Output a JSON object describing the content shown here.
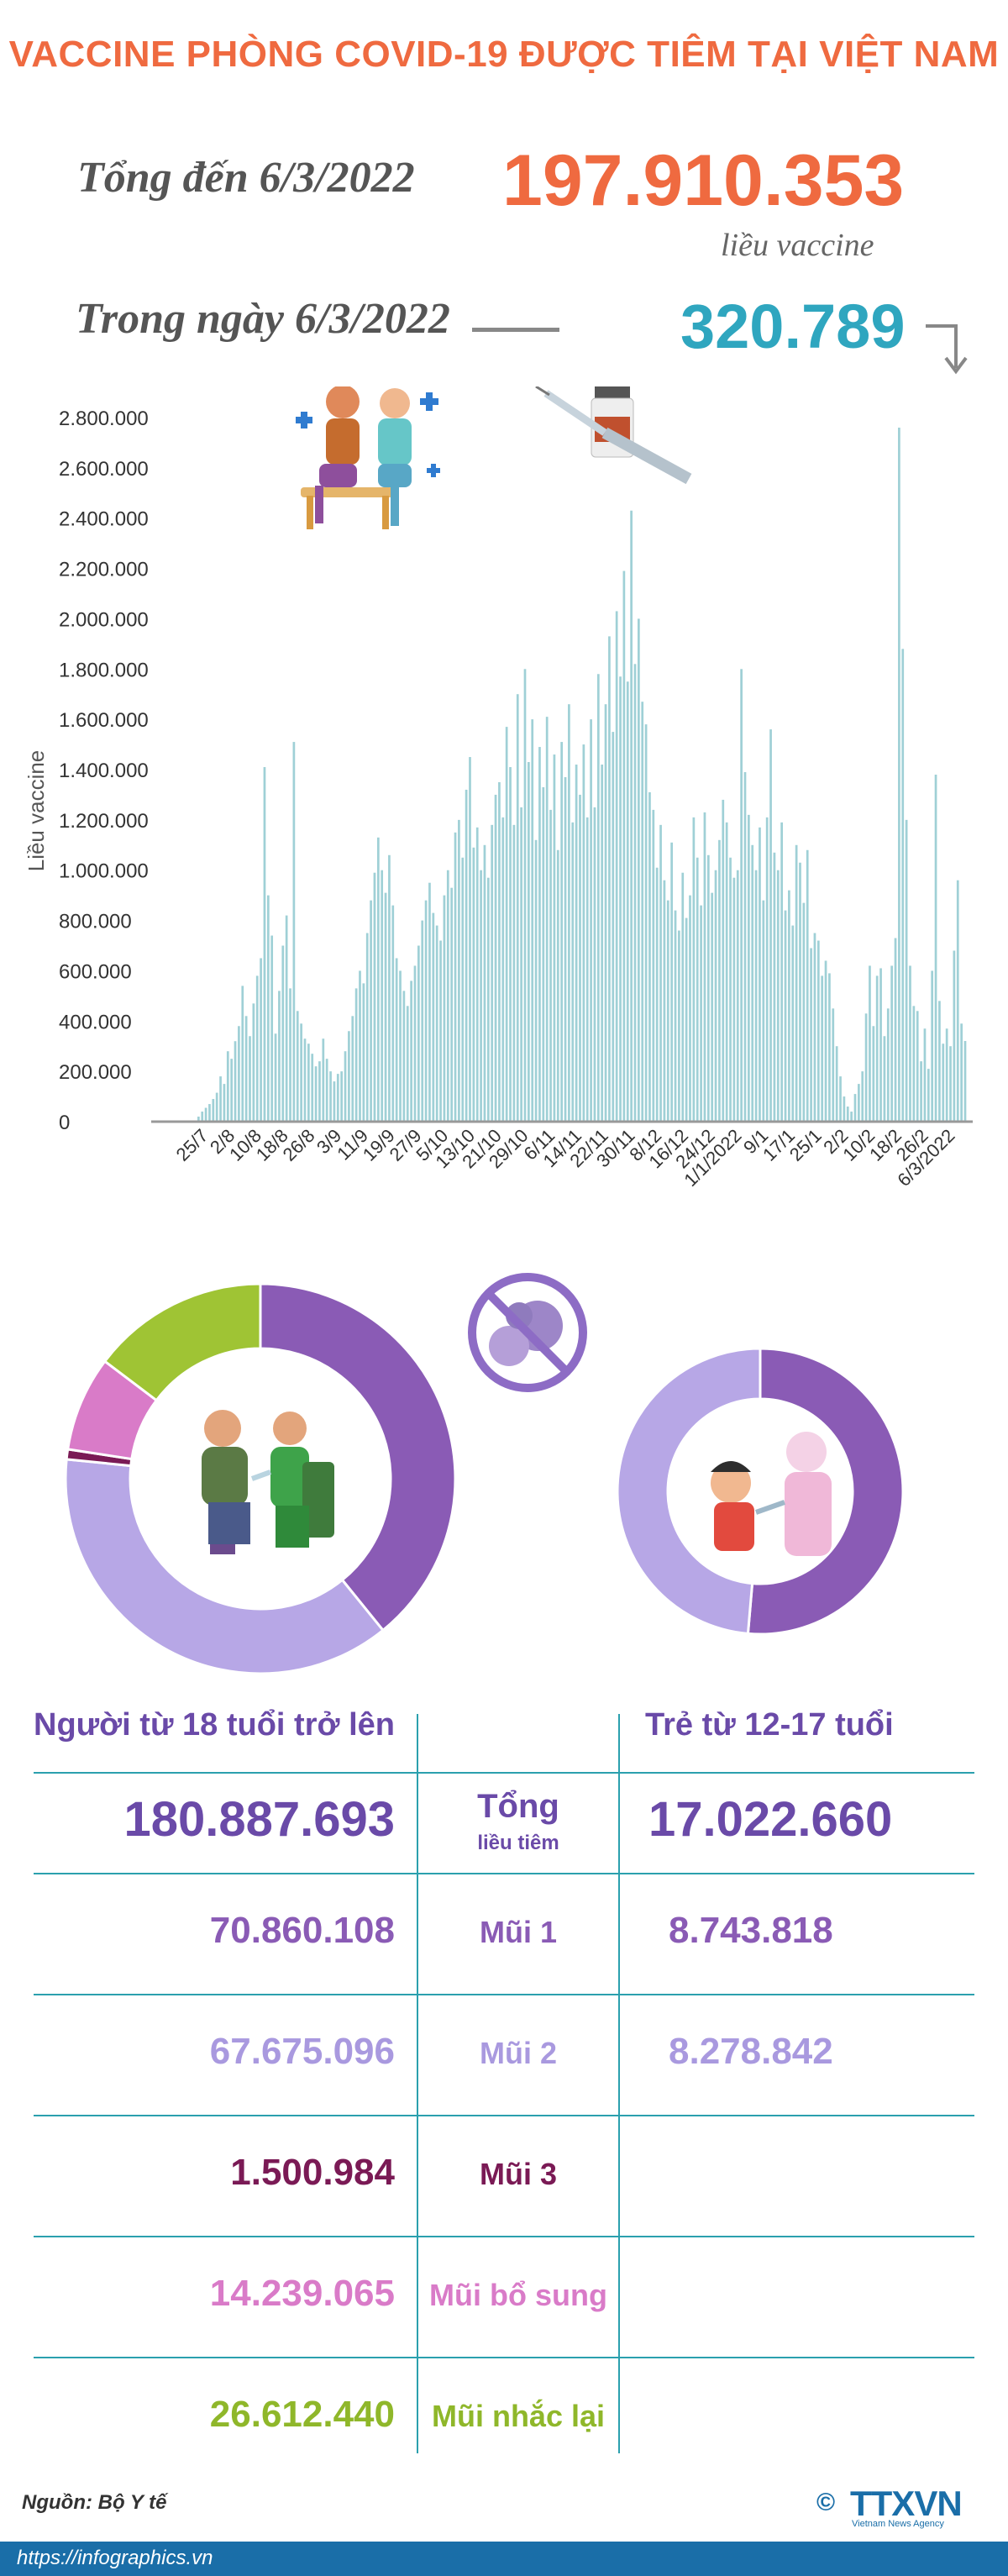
{
  "title": "VACCINE PHÒNG COVID-19 ĐƯỢC TIÊM TẠI VIỆT NAM",
  "summary": {
    "total_label": "Tổng đến 6/3/2022",
    "total_value": "197.910.353",
    "total_unit": "liều vaccine",
    "daily_label": "Trong ngày 6/3/2022",
    "daily_value": "320.789",
    "daily_trend_icon": "down-arrow-icon"
  },
  "chart_data": {
    "type": "bar",
    "ylabel": "Liều vaccine",
    "ylim": [
      0,
      2800000
    ],
    "yticks": [
      "0",
      "200.000",
      "400.000",
      "600.000",
      "800.000",
      "1.000.000",
      "1.200.000",
      "1.400.000",
      "1.600.000",
      "1.800.000",
      "2.000.000",
      "2.200.000",
      "2.400.000",
      "2.600.000",
      "2.800.000"
    ],
    "tick_labels": [
      "25/7",
      "2/8",
      "10/8",
      "18/8",
      "26/8",
      "3/9",
      "11/9",
      "19/9",
      "27/9",
      "5/10",
      "13/10",
      "21/10",
      "29/10",
      "6/11",
      "14/11",
      "22/11",
      "30/11",
      "8/12",
      "16/12",
      "24/12",
      "1/1/2022",
      "9/1",
      "17/1",
      "25/1",
      "2/2",
      "10/2",
      "18/2",
      "26/2",
      "6/3/2022"
    ],
    "bar_color": "#9fd0d6",
    "values": [
      20000,
      40000,
      55000,
      70000,
      90000,
      115000,
      180000,
      150000,
      280000,
      250000,
      320000,
      380000,
      540000,
      420000,
      340000,
      470000,
      580000,
      650000,
      1410000,
      900000,
      740000,
      350000,
      520000,
      700000,
      820000,
      530000,
      1510000,
      440000,
      390000,
      330000,
      310000,
      270000,
      220000,
      240000,
      330000,
      250000,
      200000,
      160000,
      190000,
      200000,
      280000,
      360000,
      420000,
      530000,
      600000,
      550000,
      750000,
      880000,
      990000,
      1130000,
      1000000,
      910000,
      1060000,
      860000,
      650000,
      600000,
      520000,
      460000,
      560000,
      620000,
      700000,
      800000,
      880000,
      950000,
      830000,
      780000,
      720000,
      900000,
      1000000,
      930000,
      1150000,
      1200000,
      1050000,
      1320000,
      1450000,
      1090000,
      1170000,
      1000000,
      1100000,
      970000,
      1180000,
      1300000,
      1350000,
      1210000,
      1570000,
      1410000,
      1180000,
      1700000,
      1250000,
      1800000,
      1430000,
      1600000,
      1120000,
      1490000,
      1330000,
      1610000,
      1240000,
      1460000,
      1080000,
      1510000,
      1370000,
      1660000,
      1190000,
      1420000,
      1300000,
      1500000,
      1210000,
      1600000,
      1250000,
      1780000,
      1420000,
      1660000,
      1930000,
      1550000,
      2030000,
      1770000,
      2190000,
      1750000,
      2430000,
      1820000,
      2000000,
      1670000,
      1580000,
      1310000,
      1240000,
      1010000,
      1180000,
      960000,
      880000,
      1110000,
      840000,
      760000,
      990000,
      810000,
      900000,
      1210000,
      1050000,
      860000,
      1230000,
      1060000,
      910000,
      1000000,
      1120000,
      1280000,
      1190000,
      1050000,
      970000,
      1000000,
      1800000,
      1390000,
      1220000,
      1100000,
      1000000,
      1170000,
      880000,
      1210000,
      1560000,
      1070000,
      1000000,
      1190000,
      840000,
      920000,
      780000,
      1100000,
      1030000,
      870000,
      1080000,
      690000,
      750000,
      720000,
      580000,
      640000,
      590000,
      450000,
      300000,
      180000,
      100000,
      60000,
      40000,
      110000,
      150000,
      200000,
      430000,
      620000,
      380000,
      580000,
      610000,
      340000,
      450000,
      620000,
      730000,
      2760000,
      1880000,
      1200000,
      620000,
      460000,
      440000,
      240000,
      370000,
      210000,
      600000,
      1380000,
      480000,
      310000,
      370000,
      300000,
      680000,
      960000,
      390000,
      320789
    ]
  },
  "donuts": {
    "adults": {
      "segments": [
        {
          "value": 70860108,
          "color": "#8a5bb5"
        },
        {
          "value": 67675096,
          "color": "#b7a7e6"
        },
        {
          "value": 1500984,
          "color": "#7a1a55"
        },
        {
          "value": 14239065,
          "color": "#d97bc8"
        },
        {
          "value": 26612440,
          "color": "#9fc434"
        }
      ]
    },
    "children": {
      "segments": [
        {
          "value": 8743818,
          "color": "#8a5bb5"
        },
        {
          "value": 8278842,
          "color": "#b7a7e6"
        }
      ]
    }
  },
  "table": {
    "adults_heading": "Người từ 18 tuổi trở lên",
    "children_heading": "Trẻ từ 12-17 tuổi",
    "total_label": "Tổng",
    "total_sublabel": "liều tiêm",
    "adults_total": "180.887.693",
    "children_total": "17.022.660",
    "rows": [
      {
        "label": "Mũi 1",
        "adults": "70.860.108",
        "children": "8.743.818",
        "color": "#8a5bb5"
      },
      {
        "label": "Mũi 2",
        "adults": "67.675.096",
        "children": "8.278.842",
        "color": "#a999df"
      },
      {
        "label": "Mũi 3",
        "adults": "1.500.984",
        "children": "",
        "color": "#7a1a55"
      },
      {
        "label": "Mũi bổ sung",
        "adults": "14.239.065",
        "children": "",
        "color": "#d97bc8"
      },
      {
        "label": "Mũi nhắc lại",
        "adults": "26.612.440",
        "children": "",
        "color": "#8fb72a"
      }
    ]
  },
  "source": "Nguồn: Bộ Y tế",
  "footer_url": "https://infographics.vn",
  "logo_text": "TTXVN",
  "logo_sub": "Vietnam News Agency",
  "colors": {
    "accent": "#ef6a40",
    "daily": "#2fa6bf",
    "rule": "#2ba0ae",
    "footer": "#1a6ea8"
  }
}
